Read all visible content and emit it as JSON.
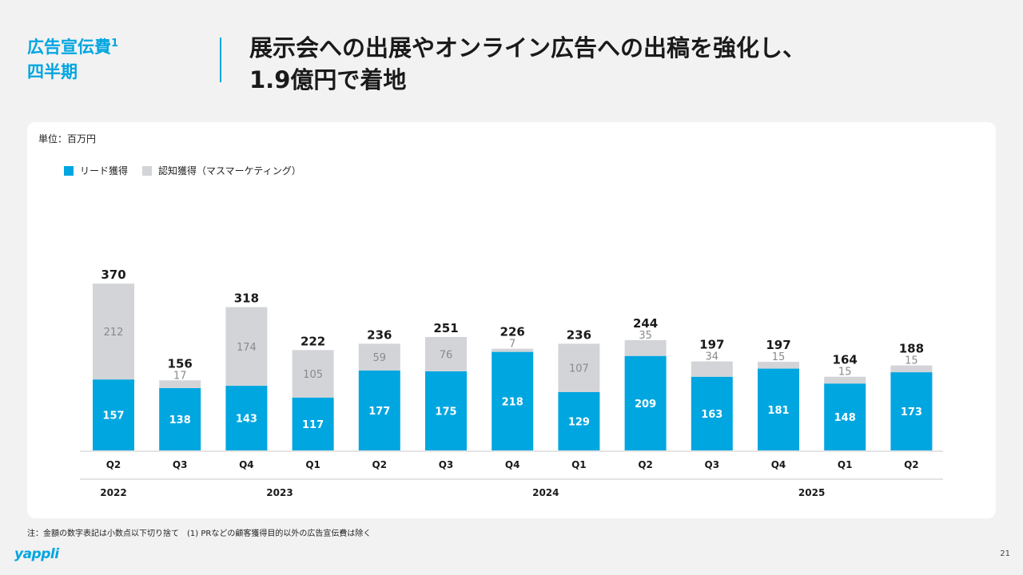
{
  "header": {
    "section_title": "広告宣伝費",
    "section_sup": "1",
    "section_sub": "四半期",
    "headline_line1": "展示会への出展やオンライン広告への出稿を強化し、",
    "headline_line2": "1.9億円で着地"
  },
  "colors": {
    "accent": "#00a6e0",
    "lead": "#00a6e0",
    "awareness": "#d3d4d8",
    "awareness_text": "#8a8a8a"
  },
  "chart_data": {
    "type": "bar",
    "stacked": true,
    "unit_label": "単位：百万円",
    "categories": [
      "Q2",
      "Q3",
      "Q4",
      "Q1",
      "Q2",
      "Q3",
      "Q4",
      "Q1",
      "Q2",
      "Q3",
      "Q4",
      "Q1",
      "Q2"
    ],
    "year_groups": [
      {
        "label": "2022",
        "start": 0,
        "end": 0
      },
      {
        "label": "2023",
        "start": 1,
        "end": 4
      },
      {
        "label": "2024",
        "start": 5,
        "end": 8
      },
      {
        "label": "2025",
        "start": 9,
        "end": 12
      }
    ],
    "series": [
      {
        "name": "リード獲得",
        "values": [
          157,
          138,
          143,
          117,
          177,
          175,
          218,
          129,
          209,
          163,
          181,
          148,
          173
        ]
      },
      {
        "name": "認知獲得（マスマーケティング）",
        "values": [
          212,
          17,
          174,
          105,
          59,
          76,
          7,
          107,
          35,
          34,
          15,
          15,
          15
        ]
      }
    ],
    "totals": [
      370,
      156,
      318,
      222,
      236,
      251,
      226,
      236,
      244,
      197,
      197,
      164,
      188
    ],
    "legend_position": "top-left"
  },
  "footer": {
    "note": "注：金額の数字表記は小数点以下切り捨て　(1) PRなどの顧客獲得目的以外の広告宣伝費は除く",
    "logo": "yappli",
    "page_number": "21"
  }
}
